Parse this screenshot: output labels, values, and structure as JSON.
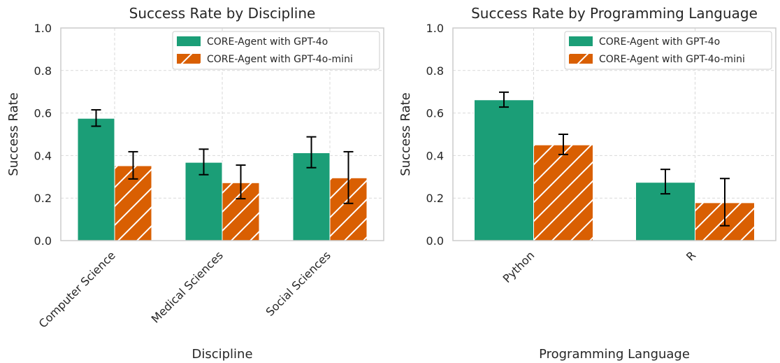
{
  "colors": {
    "series_4o": "#1b9e77",
    "series_4o_mini": "#d95f02",
    "grid": "#d9d9d9",
    "axis": "#cccccc",
    "errorbar": "#000000"
  },
  "chart_data": [
    {
      "type": "bar",
      "title": "Success Rate by Discipline",
      "xlabel": "Discipline",
      "ylabel": "Success Rate",
      "ylim": [
        0,
        1.0
      ],
      "yticks": [
        "0.0",
        "0.2",
        "0.4",
        "0.6",
        "0.8",
        "1.0"
      ],
      "grid": true,
      "legend_position": "top-right",
      "categories": [
        "Computer Science",
        "Medical Sciences",
        "Social Sciences"
      ],
      "series": [
        {
          "name": "CORE-Agent with GPT-4o",
          "values": [
            0.575,
            0.368,
            0.413
          ],
          "err_low": [
            0.538,
            0.31,
            0.343
          ],
          "err_high": [
            0.615,
            0.43,
            0.488
          ]
        },
        {
          "name": "CORE-Agent with GPT-4o-mini",
          "values": [
            0.352,
            0.272,
            0.295
          ],
          "err_low": [
            0.29,
            0.197,
            0.175
          ],
          "err_high": [
            0.418,
            0.355,
            0.418
          ]
        }
      ]
    },
    {
      "type": "bar",
      "title": "Success Rate by Programming Language",
      "xlabel": "Programming Language",
      "ylabel": "Success Rate",
      "ylim": [
        0,
        1.0
      ],
      "yticks": [
        "0.0",
        "0.2",
        "0.4",
        "0.6",
        "0.8",
        "1.0"
      ],
      "grid": true,
      "legend_position": "top-right",
      "categories": [
        "Python",
        "R"
      ],
      "series": [
        {
          "name": "CORE-Agent with GPT-4o",
          "values": [
            0.662,
            0.274
          ],
          "err_low": [
            0.628,
            0.22
          ],
          "err_high": [
            0.698,
            0.335
          ]
        },
        {
          "name": "CORE-Agent with GPT-4o-mini",
          "values": [
            0.45,
            0.178
          ],
          "err_low": [
            0.405,
            0.07
          ],
          "err_high": [
            0.5,
            0.292
          ]
        }
      ]
    }
  ]
}
